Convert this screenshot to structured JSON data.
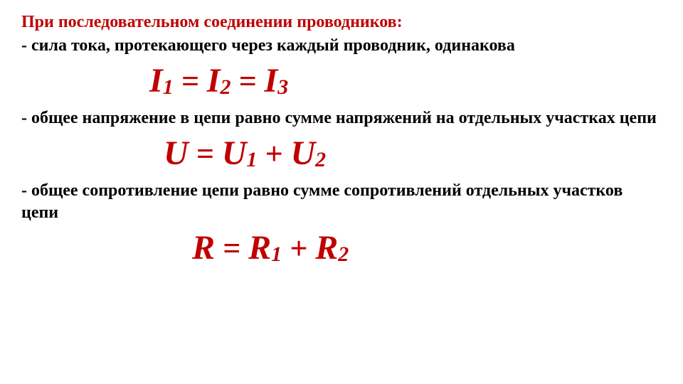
{
  "title": "При последовательном соединении проводников:",
  "line1": "- сила тока, протекающего через каждый проводник, одинакова",
  "line2": "- общее напряжение в цепи равно сумме напряжений на отдельных участках цепи",
  "line3": " - общее сопротивление цепи равно сумме сопротивлений отдельных участков цепи",
  "f1": {
    "var": "I",
    "s1": "1",
    "s2": "2",
    "s3": "3",
    "eq": " = "
  },
  "f2": {
    "var": "U",
    "s1": "1",
    "s2": "2",
    "eq": " = ",
    "plus": " + "
  },
  "f3": {
    "var": "R",
    "s1": "1",
    "s2": "2",
    "eq": " = ",
    "plus": " + "
  },
  "colors": {
    "title": "#c00000",
    "formula": "#c00000",
    "text": "#000000",
    "background": "#ffffff"
  },
  "fontsizes": {
    "title": 24,
    "text": 24,
    "formula_big": 48,
    "formula_sub": 30
  }
}
